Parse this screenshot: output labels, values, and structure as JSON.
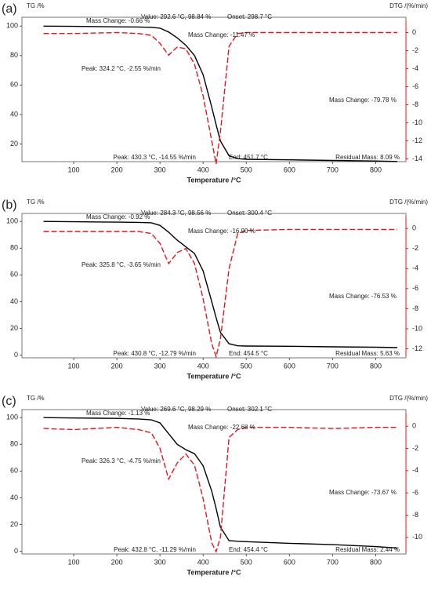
{
  "chart_data": [
    {
      "type": "line",
      "panel_label": "(a)",
      "ylabel": "TG /%",
      "y2label": "DTG /(%/min)",
      "xlabel": "Temperature /°C",
      "xlim": [
        -20,
        870
      ],
      "xticks": [
        100,
        200,
        300,
        400,
        500,
        600,
        700,
        800
      ],
      "ylim": [
        8,
        106
      ],
      "yticks": [
        20,
        40,
        60,
        80,
        100
      ],
      "y2lim": [
        -14.3,
        1.7
      ],
      "y2ticks": [
        0,
        -2,
        -4,
        -6,
        -8,
        -10,
        -12,
        -14
      ],
      "x": [
        30,
        100,
        200,
        250,
        280,
        300,
        320,
        340,
        360,
        380,
        400,
        420,
        430,
        440,
        460,
        480,
        500,
        600,
        700,
        800,
        850
      ],
      "series": [
        {
          "color": "#000000",
          "axis": "y",
          "dash": false,
          "values": [
            100,
            99.8,
            99.5,
            99.4,
            99.2,
            98.6,
            96,
            92,
            87,
            80,
            67,
            45,
            33,
            22,
            12,
            10,
            9.6,
            9.2,
            8.8,
            8.4,
            8.09
          ]
        },
        {
          "color": "#e8141c",
          "axis": "y2",
          "dash": true,
          "values": [
            -0.1,
            -0.1,
            0,
            -0.1,
            -0.3,
            -1.2,
            -2.5,
            -1.6,
            -1.8,
            -3.5,
            -7,
            -12,
            -14.55,
            -11,
            -1.5,
            -0.1,
            0,
            0,
            0,
            0,
            0
          ]
        }
      ],
      "annotations": [
        {
          "text": "Mass Change: -0.66 %",
          "color": "#222222"
        },
        {
          "text": "Value: 292.6 °C, 98.84 %",
          "color": "#222222"
        },
        {
          "text": "Onset: 298.7 °C",
          "color": "#222222"
        },
        {
          "text": "Mass Change: -11.47 %",
          "color": "#222222"
        },
        {
          "text": "Peak: 324.2 °C, -2.55 %/min",
          "color": "#e8141c"
        },
        {
          "text": "Mass Change: -79.78 %",
          "color": "#222222"
        },
        {
          "text": "Peak: 430.3 °C, -14.55 %/min",
          "color": "#e8141c"
        },
        {
          "text": "End: 451.7 °C",
          "color": "#222222"
        },
        {
          "text": "Residual Mass: 8.09 %",
          "color": "#222222"
        }
      ]
    },
    {
      "type": "line",
      "panel_label": "(b)",
      "ylabel": "TG /%",
      "y2label": "DTG /(%/min)",
      "xlabel": "Temperature /°C",
      "xlim": [
        -20,
        870
      ],
      "xticks": [
        100,
        200,
        300,
        400,
        500,
        600,
        700,
        800
      ],
      "ylim": [
        -2,
        106
      ],
      "yticks": [
        0,
        20,
        40,
        60,
        80,
        100
      ],
      "y2lim": [
        -12.9,
        1.5
      ],
      "y2ticks": [
        0,
        -2,
        -4,
        -6,
        -8,
        -10,
        -12
      ],
      "x": [
        30,
        100,
        200,
        250,
        280,
        300,
        320,
        340,
        360,
        380,
        400,
        420,
        430,
        440,
        460,
        480,
        500,
        600,
        700,
        800,
        850
      ],
      "series": [
        {
          "color": "#000000",
          "axis": "y",
          "dash": false,
          "values": [
            100,
            99.8,
            99.5,
            99.3,
            99,
            97,
            92,
            86,
            81,
            76,
            63,
            40,
            28,
            17,
            8.5,
            7,
            6.8,
            6.6,
            6.2,
            5.9,
            5.63
          ]
        },
        {
          "color": "#e8141c",
          "axis": "y2",
          "dash": true,
          "values": [
            -0.3,
            -0.3,
            -0.3,
            -0.3,
            -0.5,
            -1.5,
            -3.5,
            -2.4,
            -2,
            -3.5,
            -7,
            -11.5,
            -12.79,
            -11,
            -4,
            -0.5,
            -0.2,
            -0.1,
            -0.1,
            -0.1,
            -0.1
          ]
        }
      ],
      "annotations": [
        {
          "text": "Mass Change: -0.92 %",
          "color": "#222222"
        },
        {
          "text": "Value: 284.3 °C, 98.56 %",
          "color": "#222222"
        },
        {
          "text": "Onset: 300.4 °C",
          "color": "#222222"
        },
        {
          "text": "Mass Change: -16.90 %",
          "color": "#222222"
        },
        {
          "text": "Peak: 325.8 °C, -3.65 %/min",
          "color": "#e8141c"
        },
        {
          "text": "Mass Change: -76.53 %",
          "color": "#222222"
        },
        {
          "text": "Peak: 430.8 °C, -12.79 %/min",
          "color": "#e8141c"
        },
        {
          "text": "End: 454.5 °C",
          "color": "#222222"
        },
        {
          "text": "Residual Mass: 5.63 %",
          "color": "#222222"
        }
      ]
    },
    {
      "type": "line",
      "panel_label": "(c)",
      "ylabel": "TG /%",
      "y2label": "DTG /(%/min)",
      "xlabel": "Temperature /°C",
      "xlim": [
        -20,
        870
      ],
      "xticks": [
        100,
        200,
        300,
        400,
        500,
        600,
        700,
        800
      ],
      "ylim": [
        -2,
        106
      ],
      "yticks": [
        0,
        20,
        40,
        60,
        80,
        100
      ],
      "y2lim": [
        -11.5,
        1.5
      ],
      "y2ticks": [
        0,
        -2,
        -4,
        -6,
        -8,
        -10
      ],
      "x": [
        30,
        100,
        200,
        250,
        280,
        300,
        320,
        340,
        360,
        380,
        400,
        420,
        430,
        440,
        460,
        480,
        500,
        600,
        700,
        800,
        850
      ],
      "series": [
        {
          "color": "#000000",
          "axis": "y",
          "dash": false,
          "values": [
            100,
            99.7,
            99.4,
            99,
            98.3,
            96,
            88,
            80,
            76,
            73,
            64,
            45,
            32,
            18,
            8,
            7.5,
            7.2,
            6,
            5,
            3.5,
            2.44
          ]
        },
        {
          "color": "#e8141c",
          "axis": "y2",
          "dash": true,
          "values": [
            -0.2,
            -0.3,
            -0.1,
            -0.3,
            -0.6,
            -2,
            -4.75,
            -3.3,
            -2.5,
            -3.5,
            -6.5,
            -10.5,
            -11.29,
            -10,
            -1,
            -0.3,
            -0.1,
            -0.1,
            -0.2,
            -0.1,
            -0.1
          ]
        }
      ],
      "annotations": [
        {
          "text": "Mass Change: -1.13 %",
          "color": "#222222"
        },
        {
          "text": "Value: 269.6 °C, 98.29 %",
          "color": "#222222"
        },
        {
          "text": "Onset: 302.1 °C",
          "color": "#222222"
        },
        {
          "text": "Mass Change: -22.68 %",
          "color": "#222222"
        },
        {
          "text": "Peak: 326.3 °C, -4.75 %/min",
          "color": "#e8141c"
        },
        {
          "text": "Mass Change: -73.67 %",
          "color": "#222222"
        },
        {
          "text": "Peak: 432.8 °C, -11.29 %/min",
          "color": "#e8141c"
        },
        {
          "text": "End: 454.4 °C",
          "color": "#222222"
        },
        {
          "text": "Residual Mass: 2.44 %",
          "color": "#222222"
        }
      ]
    }
  ]
}
